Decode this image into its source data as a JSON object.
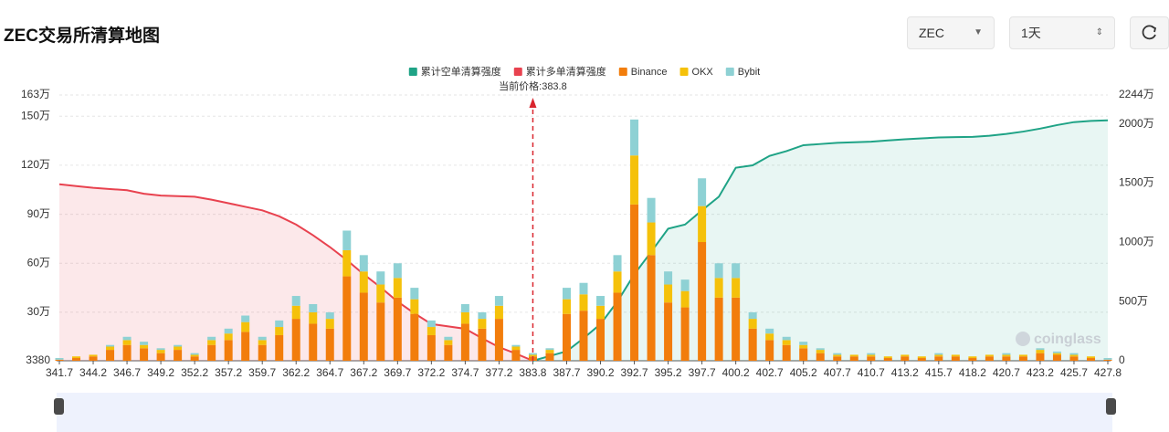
{
  "header": {
    "title": "ZEC交易所清算地图",
    "symbol": "ZEC",
    "interval": "1天"
  },
  "chart_data": {
    "type": "bar",
    "annotation": "当前价格:383.8",
    "watermark": "coinglass",
    "categories": [
      "341.7",
      null,
      "344.2",
      null,
      "346.7",
      null,
      "349.2",
      null,
      "352.2",
      null,
      "357.2",
      null,
      "359.7",
      null,
      "362.2",
      null,
      "364.7",
      null,
      "367.2",
      null,
      "369.7",
      null,
      "372.2",
      null,
      "374.7",
      null,
      "377.2",
      null,
      "383.8",
      null,
      "387.7",
      null,
      "390.2",
      null,
      "392.7",
      null,
      "395.2",
      null,
      "397.7",
      null,
      "400.2",
      null,
      "402.7",
      null,
      "405.2",
      null,
      "407.7",
      null,
      "410.7",
      null,
      "413.2",
      null,
      "415.7",
      null,
      "418.2",
      null,
      "420.7",
      null,
      "423.2",
      null,
      "425.7",
      null,
      "427.8"
    ],
    "ylim": [
      3380,
      1630000
    ],
    "yticks": [
      3380,
      {
        "value": 300000,
        "label": "30万"
      },
      {
        "value": 600000,
        "label": "60万"
      },
      {
        "value": 900000,
        "label": "90万"
      },
      {
        "value": 1200000,
        "label": "120万"
      },
      {
        "value": 1500000,
        "label": "150万"
      },
      {
        "value": 1630000,
        "label": "163万"
      }
    ],
    "y2lim": [
      0,
      22440000
    ],
    "y2ticks": [
      0,
      {
        "value": 5000000,
        "label": "500万"
      },
      {
        "value": 10000000,
        "label": "1000万"
      },
      {
        "value": 15000000,
        "label": "1500万"
      },
      {
        "value": 20000000,
        "label": "2000万"
      },
      {
        "value": 22440000,
        "label": "2244万"
      }
    ],
    "grid": true,
    "series": [
      {
        "name": "累计空单清算强度",
        "type": "line",
        "axis": "y2",
        "color": "#1fa386",
        "fill": "rgba(31,163,134,0.10)",
        "values": [
          null,
          null,
          null,
          null,
          null,
          null,
          null,
          null,
          null,
          null,
          null,
          null,
          null,
          null,
          null,
          null,
          null,
          null,
          null,
          null,
          null,
          null,
          null,
          null,
          null,
          null,
          null,
          null,
          0,
          400000,
          800000,
          1900000,
          3100000,
          5000000,
          7300000,
          9200000,
          11150000,
          11500000,
          12700000,
          13850000,
          16300000,
          16500000,
          17300000,
          17700000,
          18200000,
          18300000,
          18400000,
          18450000,
          18500000,
          18600000,
          18700000,
          18780000,
          18850000,
          18880000,
          18900000,
          19000000,
          19150000,
          19350000,
          19600000,
          19900000,
          20150000,
          20250000,
          20300000
        ]
      },
      {
        "name": "累计多单清算强度",
        "type": "line",
        "axis": "y2",
        "color": "#e8424f",
        "fill": "rgba(232,66,79,0.12)",
        "values": [
          14900000,
          14750000,
          14600000,
          14500000,
          14400000,
          14100000,
          13950000,
          13900000,
          13850000,
          13600000,
          13300000,
          13000000,
          12700000,
          12200000,
          11500000,
          10600000,
          9600000,
          8500000,
          7300000,
          6200000,
          5000000,
          4000000,
          3100000,
          2900000,
          2700000,
          1900000,
          1150000,
          600000,
          0,
          null,
          null,
          null,
          null,
          null,
          null,
          null,
          null,
          null,
          null,
          null,
          null,
          null,
          null,
          null,
          null,
          null,
          null,
          null,
          null,
          null,
          null,
          null,
          null,
          null,
          null,
          null,
          null,
          null,
          null,
          null,
          null,
          null,
          null
        ]
      },
      {
        "name": "Binance",
        "type": "bar",
        "color": "#f27d0c",
        "values": [
          10000,
          20000,
          30000,
          70000,
          100000,
          80000,
          50000,
          70000,
          30000,
          100000,
          130000,
          180000,
          100000,
          160000,
          260000,
          230000,
          200000,
          520000,
          420000,
          360000,
          390000,
          290000,
          160000,
          100000,
          230000,
          200000,
          260000,
          70000,
          30000,
          50000,
          290000,
          310000,
          260000,
          420000,
          960000,
          650000,
          360000,
          330000,
          730000,
          390000,
          390000,
          200000,
          130000,
          100000,
          80000,
          50000,
          30000,
          30000,
          30000,
          20000,
          30000,
          20000,
          30000,
          30000,
          20000,
          30000,
          30000,
          30000,
          50000,
          40000,
          30000,
          20000,
          10000
        ]
      },
      {
        "name": "OKX",
        "type": "bar",
        "color": "#f5c10a",
        "values": [
          0,
          10000,
          10000,
          20000,
          30000,
          20000,
          20000,
          20000,
          10000,
          30000,
          40000,
          60000,
          30000,
          50000,
          80000,
          70000,
          60000,
          160000,
          130000,
          110000,
          120000,
          90000,
          50000,
          30000,
          70000,
          60000,
          80000,
          20000,
          10000,
          20000,
          90000,
          100000,
          80000,
          130000,
          300000,
          200000,
          110000,
          100000,
          220000,
          120000,
          120000,
          60000,
          40000,
          30000,
          20000,
          20000,
          10000,
          10000,
          10000,
          10000,
          10000,
          10000,
          10000,
          10000,
          10000,
          10000,
          10000,
          10000,
          20000,
          10000,
          10000,
          10000,
          0
        ]
      },
      {
        "name": "Bybit",
        "type": "bar",
        "color": "#8ed1d4",
        "values": [
          10000,
          0,
          0,
          10000,
          20000,
          20000,
          10000,
          10000,
          10000,
          20000,
          30000,
          40000,
          20000,
          40000,
          60000,
          50000,
          40000,
          120000,
          100000,
          80000,
          90000,
          70000,
          40000,
          20000,
          50000,
          40000,
          60000,
          10000,
          10000,
          10000,
          70000,
          70000,
          60000,
          100000,
          220000,
          150000,
          80000,
          70000,
          170000,
          90000,
          90000,
          40000,
          30000,
          20000,
          20000,
          10000,
          10000,
          0,
          10000,
          0,
          0,
          0,
          10000,
          0,
          0,
          0,
          10000,
          0,
          10000,
          10000,
          10000,
          0,
          10000
        ]
      }
    ]
  }
}
